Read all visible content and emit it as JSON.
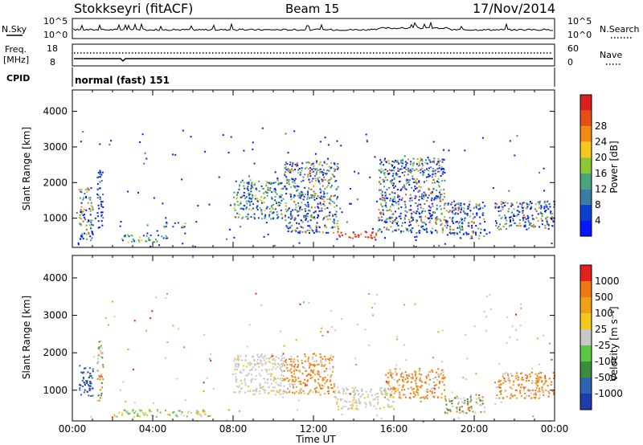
{
  "header": {
    "station": "Stokkseyri (fitACF)",
    "beam": "Beam 15",
    "date": "17/Nov/2014"
  },
  "noise_panel": {
    "left_label": "N.Sky",
    "left_ticks": [
      "10^5",
      "10^0"
    ],
    "right_label": "N.Search",
    "right_ticks": [
      "10^5",
      "10^0"
    ]
  },
  "freq_panel": {
    "left_label_line1": "Freq.",
    "left_label_line2": "[MHz]",
    "left_ticks": [
      "18",
      "8"
    ],
    "right_label": "Nave",
    "right_ticks": [
      "60",
      "0"
    ]
  },
  "cpid": {
    "label": "CPID",
    "value": "normal (fast) 151"
  },
  "x_axis": {
    "label": "Time UT",
    "ticks": [
      "00:00",
      "04:00",
      "08:00",
      "12:00",
      "16:00",
      "20:00",
      "00:00"
    ]
  },
  "chart_data": [
    {
      "type": "heatmap",
      "name": "power",
      "ylabel": "Slant Range [km]",
      "xlabel": "Time UT",
      "ylim": [
        180,
        4600
      ],
      "y_ticks": [
        1000,
        2000,
        3000,
        4000
      ],
      "x_ticks_hours": [
        0,
        4,
        8,
        12,
        16,
        20,
        24
      ],
      "colorbar_label": "Power [dB]",
      "colorbar_ticks": [
        "4",
        "8",
        "12",
        "16",
        "20",
        "24",
        "28"
      ],
      "colorbar_colors": [
        "#0019ff",
        "#0a3fd0",
        "#3b7ca3",
        "#46a57c",
        "#8cc832",
        "#f5c81e",
        "#f08c14",
        "#e65014",
        "#dc1e1e"
      ],
      "echo_regions": [
        {
          "t": [
            0.3,
            1.0
          ],
          "range": [
            400,
            1900
          ],
          "level": "high"
        },
        {
          "t": [
            1.2,
            1.5
          ],
          "range": [
            700,
            2400
          ],
          "level": "low"
        },
        {
          "t": [
            2.4,
            4.8
          ],
          "range": [
            350,
            550
          ],
          "level": "mid"
        },
        {
          "t": [
            4.5,
            5.6
          ],
          "range": [
            750,
            900
          ],
          "level": "mid"
        },
        {
          "t": [
            8.0,
            10.5
          ],
          "range": [
            1000,
            2100
          ],
          "level": "mid"
        },
        {
          "t": [
            10.5,
            13.2
          ],
          "range": [
            600,
            2600
          ],
          "level": "high"
        },
        {
          "t": [
            13.2,
            15.2
          ],
          "range": [
            450,
            650
          ],
          "level": "very-high"
        },
        {
          "t": [
            15.2,
            18.5
          ],
          "range": [
            600,
            2700
          ],
          "level": "high"
        },
        {
          "t": [
            18.5,
            20.5
          ],
          "range": [
            450,
            1500
          ],
          "level": "high"
        },
        {
          "t": [
            21.0,
            24.0
          ],
          "range": [
            700,
            1500
          ],
          "level": "high"
        }
      ]
    },
    {
      "type": "heatmap",
      "name": "velocity",
      "ylabel": "Slant Range [km]",
      "xlabel": "Time UT",
      "ylim": [
        180,
        4600
      ],
      "y_ticks": [
        1000,
        2000,
        3000,
        4000
      ],
      "x_ticks_hours": [
        0,
        4,
        8,
        12,
        16,
        20,
        24
      ],
      "colorbar_label": "Velocity [m s⁻¹]",
      "colorbar_ticks": [
        "1000",
        "500",
        "100",
        "25",
        "-25",
        "-100",
        "-500",
        "-1000"
      ],
      "colorbar_colors": [
        "#1e3caa",
        "#2d64b4",
        "#3c8c3c",
        "#5ac846",
        "#c8c8c8",
        "#f5c81e",
        "#f0a014",
        "#f07814",
        "#e61e1e"
      ],
      "echo_regions": [
        {
          "t": [
            0.3,
            1.0
          ],
          "range": [
            800,
            1700
          ],
          "level": "positive-high"
        },
        {
          "t": [
            1.2,
            1.5
          ],
          "range": [
            700,
            2400
          ],
          "level": "mixed"
        },
        {
          "t": [
            2.0,
            7.0
          ],
          "range": [
            300,
            500
          ],
          "level": "low-positive"
        },
        {
          "t": [
            8.0,
            10.5
          ],
          "range": [
            900,
            2000
          ],
          "level": "near-zero"
        },
        {
          "t": [
            10.5,
            13.0
          ],
          "range": [
            900,
            2000
          ],
          "level": "negative"
        },
        {
          "t": [
            13.0,
            16.0
          ],
          "range": [
            500,
            1100
          ],
          "level": "near-zero"
        },
        {
          "t": [
            15.5,
            18.5
          ],
          "range": [
            800,
            1600
          ],
          "level": "negative"
        },
        {
          "t": [
            18.5,
            20.5
          ],
          "range": [
            400,
            900
          ],
          "level": "mixed"
        },
        {
          "t": [
            21.0,
            24.0
          ],
          "range": [
            800,
            1500
          ],
          "level": "negative"
        }
      ]
    }
  ]
}
